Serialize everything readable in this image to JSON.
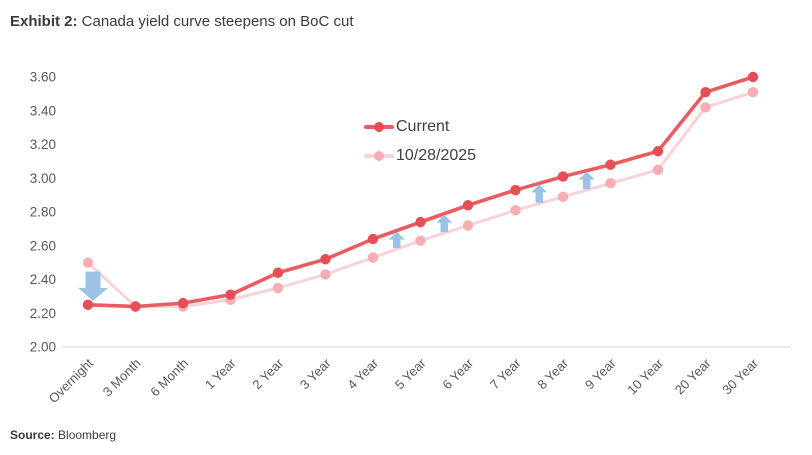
{
  "title": {
    "prefix": "Exhibit 2:",
    "rest": " Canada yield curve steepens on BoC cut"
  },
  "source": {
    "label": "Source:",
    "rest": " Bloomberg"
  },
  "colors": {
    "current_line": "#ea5b62",
    "current_marker": "#e64e57",
    "previous_line": "#f9d4d7",
    "previous_marker": "#f4aeb4",
    "arrow": "#9cc2e5",
    "axis_text": "#595959",
    "axis_line": "#d9d9d9",
    "title_text": "#3b3b3b",
    "legend_text": "#404040"
  },
  "chart_data": {
    "type": "line",
    "title": "Exhibit 2: Canada yield curve steepens on BoC cut",
    "categories": [
      "Overnight",
      "3 Month",
      "6 Month",
      "1 Year",
      "2 Year",
      "3 Year",
      "4 Year",
      "5 Year",
      "6 Year",
      "7 Year",
      "8 Year",
      "9 Year",
      "10 Year",
      "20 Year",
      "30 Year"
    ],
    "series": [
      {
        "name": "Current",
        "values": [
          2.25,
          2.24,
          2.26,
          2.31,
          2.44,
          2.52,
          2.64,
          2.74,
          2.84,
          2.93,
          3.01,
          3.08,
          3.16,
          3.51,
          3.6
        ]
      },
      {
        "name": "10/28/2025",
        "values": [
          2.5,
          2.24,
          2.24,
          2.28,
          2.35,
          2.43,
          2.53,
          2.63,
          2.72,
          2.81,
          2.89,
          2.97,
          3.05,
          3.42,
          3.51
        ]
      }
    ],
    "ylabel": "",
    "xlabel": "",
    "ylim": [
      2.0,
      3.6
    ],
    "ytick_step": 0.2,
    "ytick_labels": [
      "2.00",
      "2.20",
      "2.40",
      "2.60",
      "2.80",
      "3.00",
      "3.20",
      "3.40",
      "3.60"
    ],
    "grid": false,
    "legend_position": "inside-top-center",
    "annotations": [
      {
        "shape": "block-arrow",
        "direction": "down",
        "categories": [
          "Overnight"
        ]
      },
      {
        "shape": "block-arrow",
        "direction": "up",
        "categories": [
          "4 Year",
          "5 Year"
        ]
      },
      {
        "shape": "block-arrow",
        "direction": "up",
        "categories": [
          "5 Year",
          "6 Year"
        ]
      },
      {
        "shape": "block-arrow",
        "direction": "up",
        "categories": [
          "7 Year",
          "8 Year"
        ]
      },
      {
        "shape": "block-arrow",
        "direction": "up",
        "categories": [
          "8 Year",
          "9 Year"
        ]
      }
    ]
  }
}
